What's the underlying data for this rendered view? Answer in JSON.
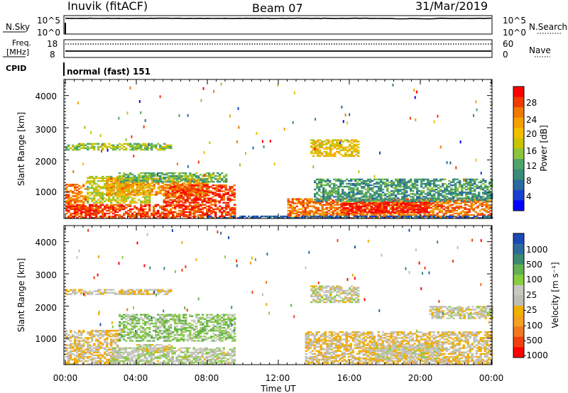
{
  "header": {
    "station": "Inuvik (fitACF)",
    "beam": "Beam 07",
    "date": "31/Mar/2019"
  },
  "strip_panels": {
    "nsky_label": "N.Sky",
    "nsky_ticks": [
      "10^5",
      "10^0"
    ],
    "nsearch_label": "N.Search",
    "nsearch_ticks": [
      "10^5",
      "10^0"
    ],
    "freq_label_1": "Freq.",
    "freq_label_2": "[MHz]",
    "freq_ticks": [
      "18",
      "8"
    ],
    "nave_label": "Nave",
    "nave_ticks": [
      "60",
      "0"
    ],
    "cpid_label": "CPID",
    "cpid_value": "normal (fast) 151"
  },
  "power_panel": {
    "ylabel": "Slant Range [km]",
    "yticks": [
      "4000",
      "3000",
      "2000",
      "1000"
    ],
    "colorbar_label": "Power [dB]",
    "colorbar_ticks": [
      "28",
      "24",
      "20",
      "16",
      "12",
      "8",
      "4"
    ],
    "colors": [
      "#ff0000",
      "#f03a00",
      "#f07800",
      "#f5a000",
      "#f0c000",
      "#c9c400",
      "#8cc43c",
      "#4ea56a",
      "#3a8c7a",
      "#2a6aa0",
      "#1a3fd0",
      "#0000ff"
    ]
  },
  "velocity_panel": {
    "ylabel": "Slant Range [km]",
    "yticks": [
      "4000",
      "3000",
      "2000",
      "1000"
    ],
    "colorbar_label": "Velocity [m s⁻¹]",
    "colorbar_ticks": [
      "1000",
      "500",
      "100",
      "25",
      "-25",
      "-100",
      "-500",
      "-1000"
    ],
    "colors": [
      "#1c48b8",
      "#2f6b9a",
      "#3b8a70",
      "#63b050",
      "#88cc40",
      "#c8c8c0",
      "#bdbdb5",
      "#f0b000",
      "#f5a020",
      "#f07820",
      "#f04010",
      "#ff0000"
    ]
  },
  "time_axis": {
    "ticks": [
      "00:00",
      "04:00",
      "08:00",
      "12:00",
      "16:00",
      "20:00",
      "00:00"
    ],
    "label": "Time UT"
  },
  "chart_data": {
    "type": "heatmap",
    "x_unit": "hours UT",
    "xlim": [
      0,
      24
    ],
    "ylim": [
      180,
      4500
    ],
    "panels": [
      {
        "name": "Power",
        "unit": "dB",
        "clim": [
          0,
          30
        ],
        "regions": [
          {
            "t": [
              0.0,
              1.2
            ],
            "r": [
              450,
              1250
            ],
            "v": 24
          },
          {
            "t": [
              0.0,
              9.5
            ],
            "r": [
              180,
              600
            ],
            "v": 26
          },
          {
            "t": [
              1.2,
              4.8
            ],
            "r": [
              650,
              1500
            ],
            "v": 16
          },
          {
            "t": [
              2.3,
              8.0
            ],
            "r": [
              900,
              1400
            ],
            "v": 22
          },
          {
            "t": [
              5.5,
              9.5
            ],
            "r": [
              650,
              1200
            ],
            "v": 26
          },
          {
            "t": [
              3.0,
              9.0
            ],
            "r": [
              1300,
              1600
            ],
            "v": 12
          },
          {
            "t": [
              0.0,
              6.0
            ],
            "r": [
              2300,
              2500
            ],
            "v": 14
          },
          {
            "t": [
              13.8,
              16.5
            ],
            "r": [
              2100,
              2600
            ],
            "v": 18
          },
          {
            "t": [
              12.5,
              24.0
            ],
            "r": [
              180,
              800
            ],
            "v": 24
          },
          {
            "t": [
              15.5,
              20.5
            ],
            "r": [
              350,
              700
            ],
            "v": 28
          },
          {
            "t": [
              14.0,
              24.0
            ],
            "r": [
              700,
              1400
            ],
            "v": 10
          },
          {
            "t": [
              8.0,
              24.0
            ],
            "r": [
              180,
              260
            ],
            "v": 6
          }
        ]
      },
      {
        "name": "Velocity",
        "unit": "m s-1",
        "clim": [
          -1000,
          1000
        ],
        "regions": [
          {
            "t": [
              0.0,
              3.0
            ],
            "r": [
              180,
              1250
            ],
            "v": -150
          },
          {
            "t": [
              3.0,
              9.5
            ],
            "r": [
              900,
              1750
            ],
            "v": 250
          },
          {
            "t": [
              2.5,
              9.5
            ],
            "r": [
              180,
              700
            ],
            "v": 60
          },
          {
            "t": [
              4.0,
              6.0
            ],
            "r": [
              550,
              800
            ],
            "v": 0
          },
          {
            "t": [
              0.0,
              6.0
            ],
            "r": [
              2350,
              2500
            ],
            "v": -120
          },
          {
            "t": [
              13.8,
              16.5
            ],
            "r": [
              2100,
              2600
            ],
            "v": 0
          },
          {
            "t": [
              13.5,
              24.0
            ],
            "r": [
              180,
              1200
            ],
            "v": -150
          },
          {
            "t": [
              17.5,
              21.0
            ],
            "r": [
              350,
              800
            ],
            "v": -10
          },
          {
            "t": [
              20.5,
              24.0
            ],
            "r": [
              1600,
              2000
            ],
            "v": 0
          }
        ]
      }
    ],
    "nsky_series": {
      "ylim": [
        0,
        5
      ],
      "level": 4.6
    },
    "frequency_series": {
      "ylim": [
        8,
        18
      ],
      "level": 11.6
    },
    "nave_series": {
      "ylim": [
        0,
        60
      ],
      "level": 31
    }
  }
}
